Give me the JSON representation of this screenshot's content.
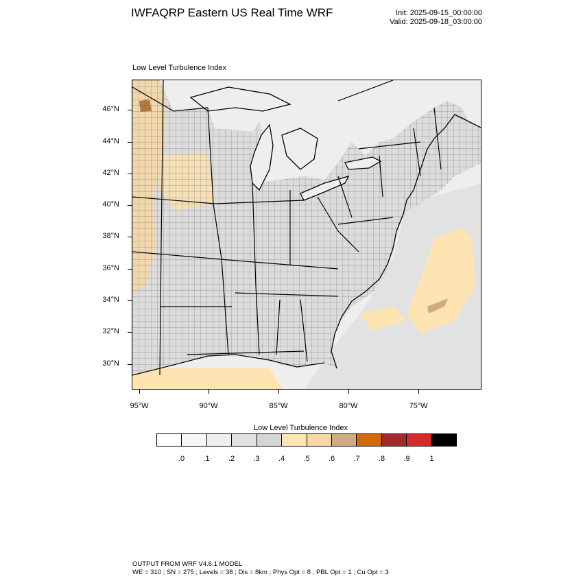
{
  "title": "IWFAQRP Eastern US Real Time WRF",
  "init_label": "Init: 2025-09-15_00:00:00",
  "valid_label": "Valid: 2025-09-18_03:00:00",
  "map_label": "Low Level Turbulence Index",
  "lat_ticks": [
    "46°N",
    "44°N",
    "42°N",
    "40°N",
    "38°N",
    "36°N",
    "34°N",
    "32°N",
    "30°N"
  ],
  "lon_ticks": [
    "95°W",
    "90°W",
    "85°W",
    "80°W",
    "75°W"
  ],
  "colorbar": {
    "title": "Low Level Turbulence Index",
    "colors": [
      "#ffffff",
      "#f7f7f7",
      "#efefef",
      "#e2e2e2",
      "#d5d5d5",
      "#fde4b2",
      "#f7d7a8",
      "#cfab83",
      "#d06a0b",
      "#a22c2c",
      "#d42a2a",
      "#000000"
    ],
    "labels": [
      ".0",
      ".1",
      ".2",
      ".3",
      ".4",
      ".5",
      ".6",
      ".7",
      ".8",
      ".9",
      "1"
    ]
  },
  "footer": {
    "line1": "OUTPUT FROM WRF V4.6.1 MODEL",
    "line2": "WE = 310 ; SN = 275 ; Levels = 38 ; Dis = 8km ; Phys Opt = 8 ; PBL Opt = 1 ; Cu Opt = 3"
  }
}
